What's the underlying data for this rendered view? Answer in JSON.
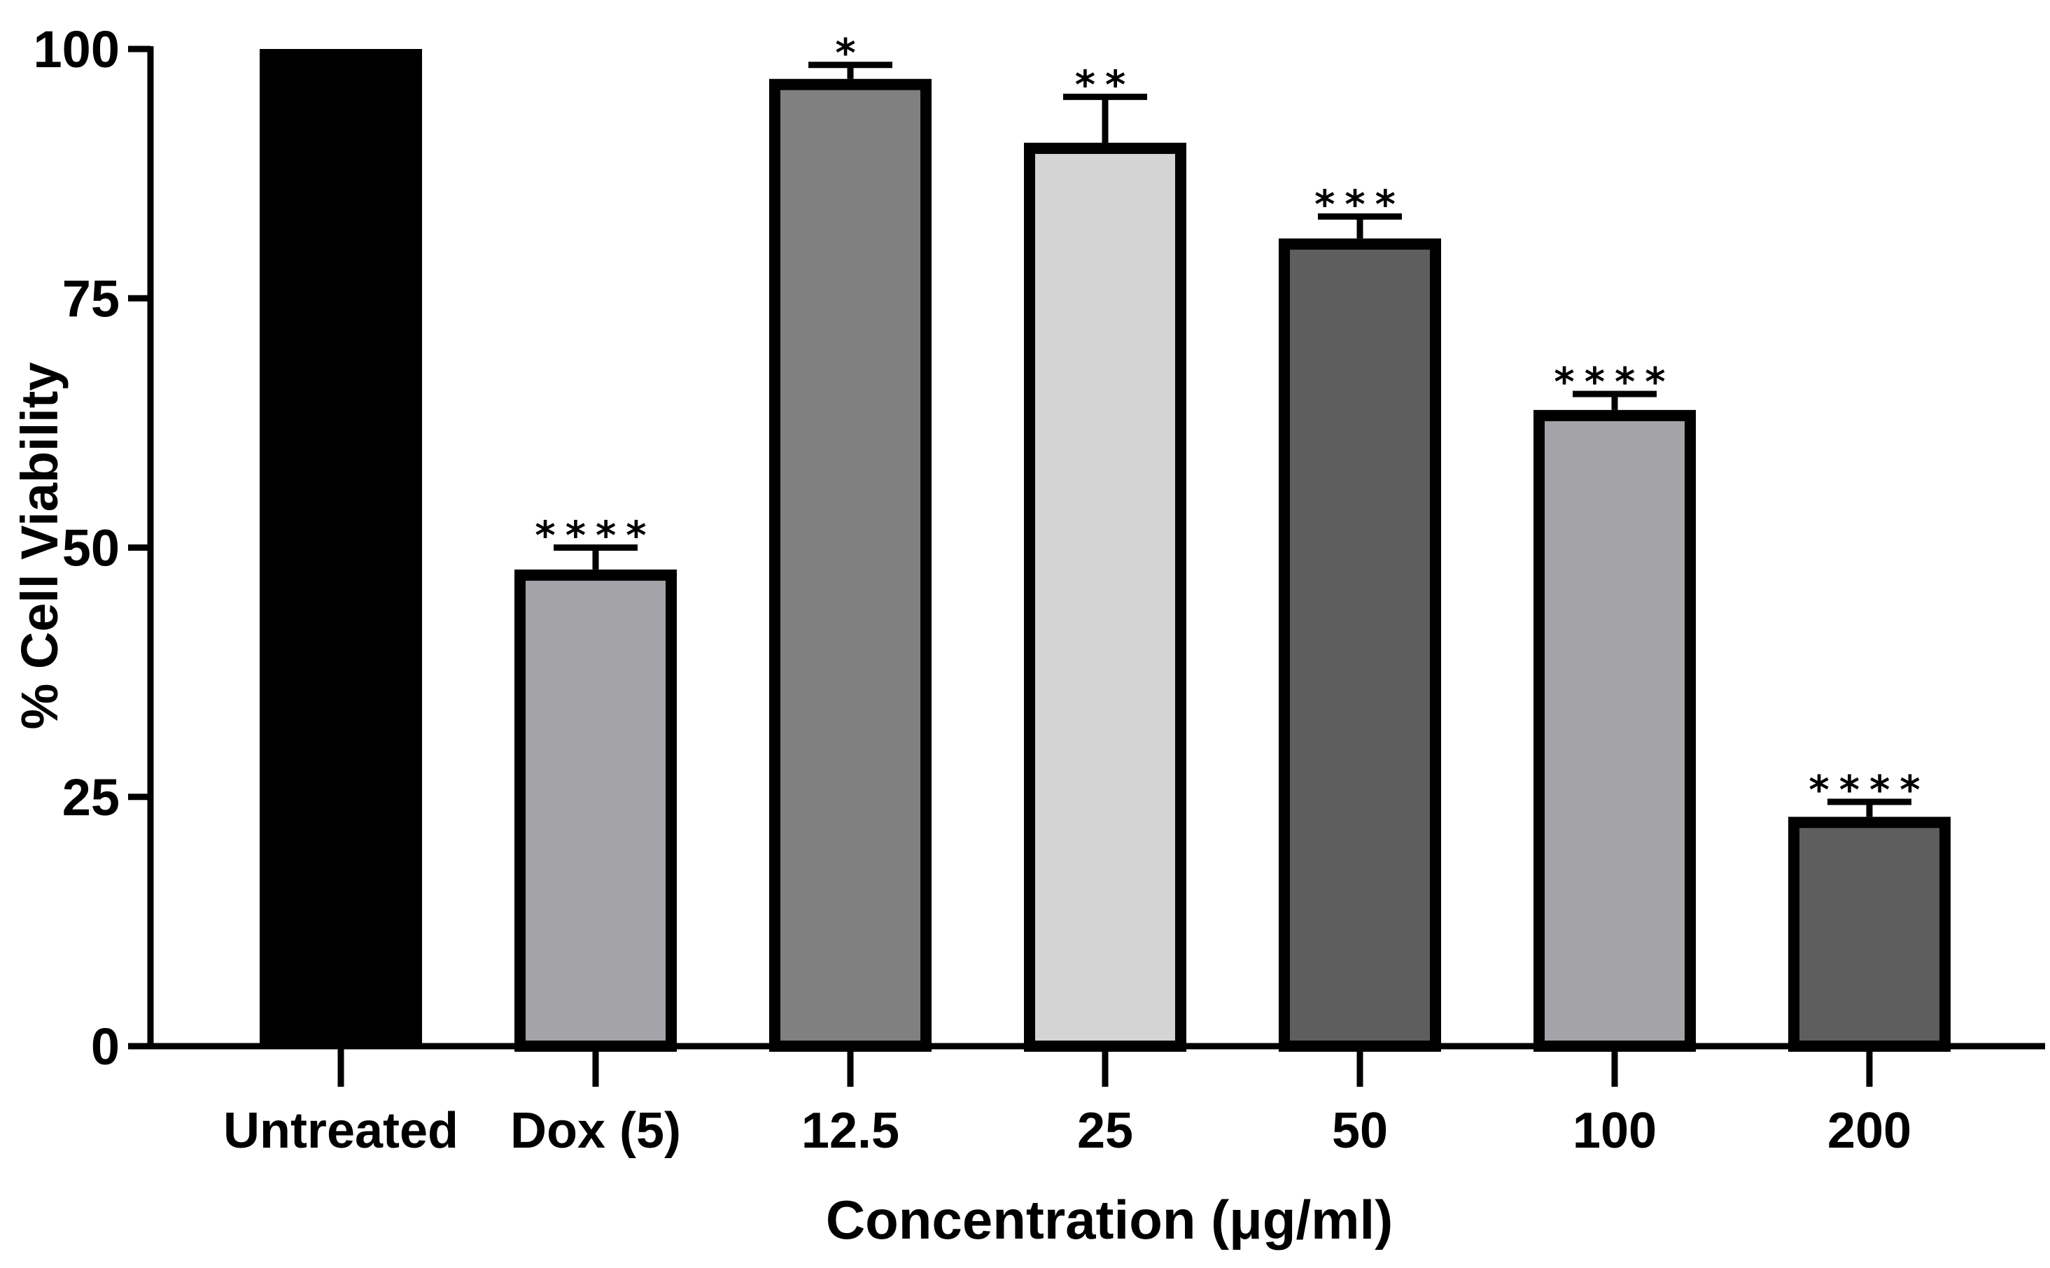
{
  "chart_data": {
    "type": "bar",
    "title": "",
    "xlabel": "Concentration (μg/ml)",
    "ylabel": "% Cell Viability",
    "ylim": [
      0,
      100
    ],
    "yticks": [
      0,
      25,
      50,
      75,
      100
    ],
    "grid": false,
    "categories": [
      "Untreated",
      "Dox (5)",
      "12.5",
      "25",
      "50",
      "100",
      "200"
    ],
    "values": [
      100,
      47.8,
      97,
      90.6,
      81,
      63.8,
      23
    ],
    "errors": [
      0,
      2.2,
      1.4,
      4.6,
      2.2,
      1.6,
      1.5
    ],
    "significance": [
      "",
      "****",
      "*",
      "**",
      "***",
      "****",
      "****"
    ],
    "colors": [
      "#000000",
      "#a3a3a8",
      "#808080",
      "#d4d4d4",
      "#5e5e5e",
      "#a3a3a8",
      "#5e5e5e"
    ]
  }
}
